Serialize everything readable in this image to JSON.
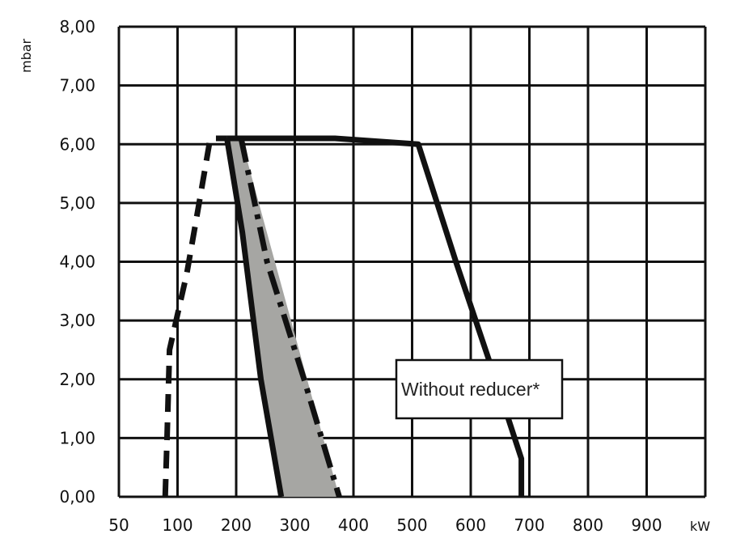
{
  "chart_data": {
    "type": "line",
    "ylabel": "mbar",
    "xlabel": "kW",
    "y_ticks": [
      "0,00",
      "1,00",
      "2,00",
      "3,00",
      "4,00",
      "5,00",
      "6,00",
      "7,00",
      "8,00"
    ],
    "x_ticks": [
      "50",
      "100",
      "200",
      "300",
      "400",
      "500",
      "600",
      "700",
      "800",
      "900"
    ],
    "ylim": [
      0,
      8
    ],
    "xlim": [
      50,
      1000
    ],
    "grid": true,
    "annotation": "Without reducer*",
    "colors": {
      "line": "#111111",
      "fill": "#a6a6a3",
      "grid": "#111111",
      "background": "#ffffff"
    },
    "series": [
      {
        "style": "solid",
        "points": [
          [
            225,
            6.1
          ],
          [
            248,
            6.1
          ],
          [
            300,
            6.1
          ],
          [
            400,
            6.1
          ],
          [
            535,
            6.0
          ],
          [
            596,
            4.0
          ],
          [
            660,
            2.0
          ],
          [
            702,
            0.65
          ],
          [
            702,
            0
          ]
        ]
      },
      {
        "style": "dashed",
        "points": [
          [
            125,
            0
          ],
          [
            128,
            1.0
          ],
          [
            132,
            2.5
          ],
          [
            160,
            3.8
          ],
          [
            180,
            5.0
          ],
          [
            198,
            6.1
          ],
          [
            225,
            6.1
          ]
        ]
      },
      {
        "style": "solid",
        "points": [
          [
            225,
            6.1
          ],
          [
            250,
            4.5
          ],
          [
            280,
            2.0
          ],
          [
            313,
            0
          ]
        ]
      },
      {
        "style": "dash-dot",
        "points": [
          [
            248,
            6.1
          ],
          [
            290,
            4.0
          ],
          [
            350,
            2.0
          ],
          [
            407,
            0
          ]
        ]
      }
    ],
    "shaded_region": {
      "points": [
        [
          225,
          6.1
        ],
        [
          248,
          6.1
        ],
        [
          407,
          0
        ],
        [
          313,
          0
        ]
      ]
    }
  }
}
